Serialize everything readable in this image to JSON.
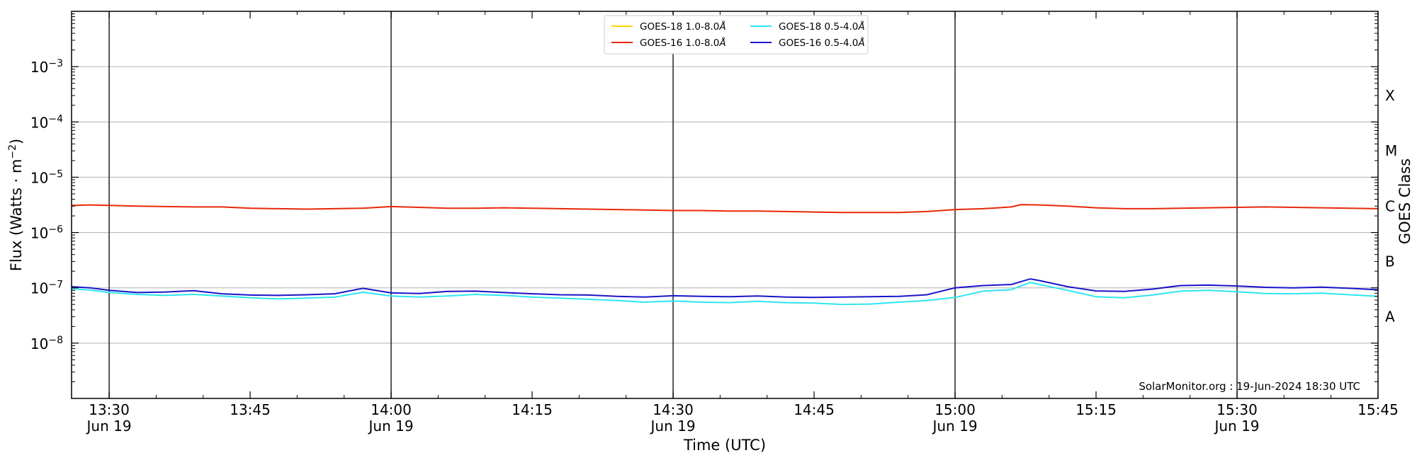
{
  "chart_data": {
    "type": "line",
    "xlabel": "Time (UTC)",
    "ylabel": "Flux (Watts · m",
    "ylabel_sup": "−2",
    "ylabel_close": ")",
    "ylabel_right": "GOES Class",
    "y_scale": "log",
    "ylim": [
      1e-09,
      0.01
    ],
    "xlim": [
      "13:26",
      "15:45"
    ],
    "grid": "horizontal",
    "legend_placement": "top-center",
    "y_ticks": [
      {
        "value": 1e-08,
        "base": "10",
        "exp": "−8"
      },
      {
        "value": 1e-07,
        "base": "10",
        "exp": "−7"
      },
      {
        "value": 1e-06,
        "base": "10",
        "exp": "−6"
      },
      {
        "value": 1e-05,
        "base": "10",
        "exp": "−5"
      },
      {
        "value": 0.0001,
        "base": "10",
        "exp": "−4"
      },
      {
        "value": 0.001,
        "base": "10",
        "exp": "−3"
      }
    ],
    "x_ticks": [
      {
        "time": "13:30",
        "label": "13:30",
        "sublabel": "Jun 19"
      },
      {
        "time": "13:45",
        "label": "13:45",
        "sublabel": ""
      },
      {
        "time": "14:00",
        "label": "14:00",
        "sublabel": "Jun 19"
      },
      {
        "time": "14:15",
        "label": "14:15",
        "sublabel": ""
      },
      {
        "time": "14:30",
        "label": "14:30",
        "sublabel": "Jun 19"
      },
      {
        "time": "14:45",
        "label": "14:45",
        "sublabel": ""
      },
      {
        "time": "15:00",
        "label": "15:00",
        "sublabel": "Jun 19"
      },
      {
        "time": "15:15",
        "label": "15:15",
        "sublabel": ""
      },
      {
        "time": "15:30",
        "label": "15:30",
        "sublabel": "Jun 19"
      },
      {
        "time": "15:45",
        "label": "15:45",
        "sublabel": ""
      }
    ],
    "vertical_lines": [
      "13:30",
      "14:00",
      "14:30",
      "15:00",
      "15:30"
    ],
    "goes_classes": [
      {
        "label": "A",
        "value": 3e-08
      },
      {
        "label": "B",
        "value": 3e-07
      },
      {
        "label": "C",
        "value": 3e-06
      },
      {
        "label": "M",
        "value": 3e-05
      },
      {
        "label": "X",
        "value": 0.0003
      }
    ],
    "series": [
      {
        "name": "GOES-18 1.0-8.0",
        "name_suffix": "Å",
        "color": "#FFD700",
        "points": []
      },
      {
        "name": "GOES-16 1.0-8.0",
        "name_suffix": "Å",
        "color": "#E8280A",
        "points": [
          [
            "13:26",
            3.1e-06
          ],
          [
            "13:28",
            3.15e-06
          ],
          [
            "13:30",
            3.1e-06
          ],
          [
            "13:33",
            3e-06
          ],
          [
            "13:36",
            2.95e-06
          ],
          [
            "13:39",
            2.9e-06
          ],
          [
            "13:42",
            2.9e-06
          ],
          [
            "13:45",
            2.75e-06
          ],
          [
            "13:48",
            2.7e-06
          ],
          [
            "13:51",
            2.65e-06
          ],
          [
            "13:54",
            2.7e-06
          ],
          [
            "13:57",
            2.75e-06
          ],
          [
            "14:00",
            2.95e-06
          ],
          [
            "14:03",
            2.85e-06
          ],
          [
            "14:06",
            2.75e-06
          ],
          [
            "14:09",
            2.75e-06
          ],
          [
            "14:12",
            2.8e-06
          ],
          [
            "14:15",
            2.75e-06
          ],
          [
            "14:18",
            2.7e-06
          ],
          [
            "14:21",
            2.65e-06
          ],
          [
            "14:24",
            2.6e-06
          ],
          [
            "14:27",
            2.55e-06
          ],
          [
            "14:30",
            2.5e-06
          ],
          [
            "14:33",
            2.5e-06
          ],
          [
            "14:36",
            2.45e-06
          ],
          [
            "14:39",
            2.45e-06
          ],
          [
            "14:42",
            2.4e-06
          ],
          [
            "14:45",
            2.35e-06
          ],
          [
            "14:48",
            2.3e-06
          ],
          [
            "14:51",
            2.3e-06
          ],
          [
            "14:54",
            2.3e-06
          ],
          [
            "14:57",
            2.4e-06
          ],
          [
            "15:00",
            2.6e-06
          ],
          [
            "15:03",
            2.7e-06
          ],
          [
            "15:06",
            2.9e-06
          ],
          [
            "15:07",
            3.2e-06
          ],
          [
            "15:09",
            3.15e-06
          ],
          [
            "15:12",
            3e-06
          ],
          [
            "15:15",
            2.8e-06
          ],
          [
            "15:18",
            2.7e-06
          ],
          [
            "15:21",
            2.7e-06
          ],
          [
            "15:24",
            2.75e-06
          ],
          [
            "15:27",
            2.8e-06
          ],
          [
            "15:30",
            2.85e-06
          ],
          [
            "15:33",
            2.9e-06
          ],
          [
            "15:36",
            2.85e-06
          ],
          [
            "15:39",
            2.8e-06
          ],
          [
            "15:42",
            2.75e-06
          ],
          [
            "15:45",
            2.7e-06
          ]
        ]
      },
      {
        "name": "GOES-18 0.5-4.0",
        "name_suffix": "Å",
        "color": "#2EE6F0",
        "points": [
          [
            "13:26",
            9.6e-08
          ],
          [
            "13:28",
            9.1e-08
          ],
          [
            "13:30",
            8.2e-08
          ],
          [
            "13:33",
            7.6e-08
          ],
          [
            "13:36",
            7.3e-08
          ],
          [
            "13:39",
            7.6e-08
          ],
          [
            "13:42",
            7.1e-08
          ],
          [
            "13:45",
            6.6e-08
          ],
          [
            "13:48",
            6.3e-08
          ],
          [
            "13:51",
            6.5e-08
          ],
          [
            "13:54",
            6.8e-08
          ],
          [
            "13:57",
            8.3e-08
          ],
          [
            "14:00",
            7.1e-08
          ],
          [
            "14:03",
            6.8e-08
          ],
          [
            "14:06",
            7.1e-08
          ],
          [
            "14:09",
            7.6e-08
          ],
          [
            "14:12",
            7.3e-08
          ],
          [
            "14:15",
            6.8e-08
          ],
          [
            "14:18",
            6.5e-08
          ],
          [
            "14:21",
            6.2e-08
          ],
          [
            "14:24",
            5.9e-08
          ],
          [
            "14:27",
            5.5e-08
          ],
          [
            "14:30",
            5.8e-08
          ],
          [
            "14:33",
            5.5e-08
          ],
          [
            "14:36",
            5.4e-08
          ],
          [
            "14:39",
            5.7e-08
          ],
          [
            "14:42",
            5.4e-08
          ],
          [
            "14:45",
            5.3e-08
          ],
          [
            "14:48",
            5e-08
          ],
          [
            "14:51",
            5.1e-08
          ],
          [
            "14:54",
            5.5e-08
          ],
          [
            "14:57",
            5.9e-08
          ],
          [
            "15:00",
            6.7e-08
          ],
          [
            "15:03",
            8.7e-08
          ],
          [
            "15:06",
            9.3e-08
          ],
          [
            "15:08",
            1.25e-07
          ],
          [
            "15:09",
            1.15e-07
          ],
          [
            "15:12",
            9e-08
          ],
          [
            "15:15",
            6.9e-08
          ],
          [
            "15:18",
            6.6e-08
          ],
          [
            "15:21",
            7.4e-08
          ],
          [
            "15:24",
            8.7e-08
          ],
          [
            "15:27",
            9e-08
          ],
          [
            "15:30",
            8.5e-08
          ],
          [
            "15:33",
            7.9e-08
          ],
          [
            "15:36",
            7.8e-08
          ],
          [
            "15:39",
            8e-08
          ],
          [
            "15:42",
            7.5e-08
          ],
          [
            "15:45",
            7e-08
          ]
        ]
      },
      {
        "name": "GOES-16 0.5-4.0",
        "name_suffix": "Å",
        "color": "#1A14C8",
        "points": [
          [
            "13:26",
            1.05e-07
          ],
          [
            "13:28",
            1e-07
          ],
          [
            "13:30",
            9e-08
          ],
          [
            "13:33",
            8.2e-08
          ],
          [
            "13:36",
            8.4e-08
          ],
          [
            "13:39",
            8.9e-08
          ],
          [
            "13:42",
            7.8e-08
          ],
          [
            "13:45",
            7.4e-08
          ],
          [
            "13:48",
            7.3e-08
          ],
          [
            "13:51",
            7.5e-08
          ],
          [
            "13:54",
            7.8e-08
          ],
          [
            "13:57",
            9.8e-08
          ],
          [
            "14:00",
            8.1e-08
          ],
          [
            "14:03",
            7.9e-08
          ],
          [
            "14:06",
            8.6e-08
          ],
          [
            "14:09",
            8.7e-08
          ],
          [
            "14:12",
            8.2e-08
          ],
          [
            "14:15",
            7.8e-08
          ],
          [
            "14:18",
            7.5e-08
          ],
          [
            "14:21",
            7.4e-08
          ],
          [
            "14:24",
            7e-08
          ],
          [
            "14:27",
            6.8e-08
          ],
          [
            "14:30",
            7.2e-08
          ],
          [
            "14:33",
            7e-08
          ],
          [
            "14:36",
            6.9e-08
          ],
          [
            "14:39",
            7.1e-08
          ],
          [
            "14:42",
            6.8e-08
          ],
          [
            "14:45",
            6.7e-08
          ],
          [
            "14:48",
            6.8e-08
          ],
          [
            "14:51",
            6.9e-08
          ],
          [
            "14:54",
            7e-08
          ],
          [
            "14:57",
            7.5e-08
          ],
          [
            "15:00",
            1e-07
          ],
          [
            "15:03",
            1.1e-07
          ],
          [
            "15:06",
            1.15e-07
          ],
          [
            "15:08",
            1.45e-07
          ],
          [
            "15:09",
            1.35e-07
          ],
          [
            "15:12",
            1.05e-07
          ],
          [
            "15:15",
            8.8e-08
          ],
          [
            "15:18",
            8.6e-08
          ],
          [
            "15:21",
            9.5e-08
          ],
          [
            "15:24",
            1.1e-07
          ],
          [
            "15:27",
            1.12e-07
          ],
          [
            "15:30",
            1.08e-07
          ],
          [
            "15:33",
            1.02e-07
          ],
          [
            "15:36",
            1e-07
          ],
          [
            "15:39",
            1.03e-07
          ],
          [
            "15:42",
            9.8e-08
          ],
          [
            "15:45",
            9.2e-08
          ]
        ]
      }
    ],
    "credit": "SolarMonitor.org : 19-Jun-2024 18:30 UTC"
  }
}
